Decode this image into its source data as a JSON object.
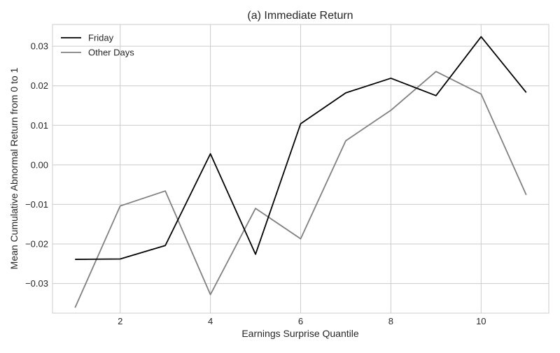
{
  "chart_data": {
    "type": "line",
    "title": "(a) Immediate Return",
    "xlabel": "Earnings Surprise Quantile",
    "ylabel": "Mean Cumulative Abnormal Return from 0 to 1",
    "x": [
      1,
      2,
      3,
      4,
      5,
      6,
      7,
      8,
      9,
      10,
      11
    ],
    "xlim": [
      0.5,
      11.5
    ],
    "ylim": [
      -0.0375,
      0.0355
    ],
    "xticks": [
      2,
      4,
      6,
      8,
      10
    ],
    "xtick_labels": [
      "2",
      "4",
      "6",
      "8",
      "10"
    ],
    "yticks": [
      -0.03,
      -0.02,
      -0.01,
      0.0,
      0.01,
      0.02,
      0.03
    ],
    "ytick_labels": [
      "−0.03",
      "−0.02",
      "−0.01",
      "0.00",
      "0.01",
      "0.02",
      "0.03"
    ],
    "grid": true,
    "legend_position": "top-left",
    "series": [
      {
        "name": "Friday",
        "color": "#000000",
        "values": [
          -0.0239,
          -0.0238,
          -0.0204,
          0.0028,
          -0.0226,
          0.0104,
          0.0182,
          0.0219,
          0.0175,
          0.0324,
          0.0183
        ]
      },
      {
        "name": "Other Days",
        "color": "#808080",
        "values": [
          -0.0361,
          -0.0104,
          -0.0066,
          -0.0328,
          -0.011,
          -0.0187,
          0.0061,
          0.0138,
          0.0236,
          0.0179,
          -0.0076
        ]
      }
    ]
  }
}
